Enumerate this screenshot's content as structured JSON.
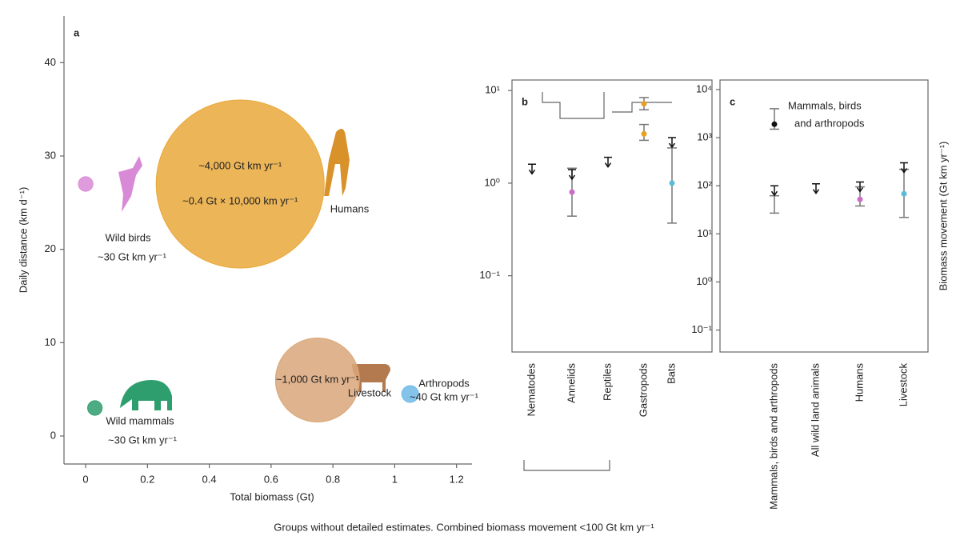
{
  "chart_data": [
    {
      "type": "bubble",
      "label": "a",
      "xlabel": "Total biomass (Gt)",
      "ylabel": "Daily distance (km d⁻¹)",
      "xlim": [
        -0.07,
        1.25
      ],
      "ylim": [
        -3,
        45
      ],
      "xticks": [
        0,
        0.2,
        0.4,
        0.6,
        0.8,
        1.0,
        1.2
      ],
      "yticks": [
        0,
        10,
        20,
        30,
        40
      ],
      "series": [
        {
          "name": "Wild birds",
          "color": "#d98ad6",
          "x": [
            0.0
          ],
          "values": [
            27
          ],
          "sizes": [
            30
          ],
          "size_labels": [
            "~30 Gt km yr⁻¹"
          ]
        },
        {
          "name": "Wild mammals",
          "color": "#2f9e6e",
          "x": [
            0.03
          ],
          "values": [
            3
          ],
          "sizes": [
            30
          ],
          "size_labels": [
            "~30 Gt km yr⁻¹"
          ]
        },
        {
          "name": "Humans",
          "color": "#e9a83a",
          "x": [
            0.5
          ],
          "values": [
            27
          ],
          "sizes": [
            4000
          ],
          "size_labels": [
            "~4,000 Gt km yr⁻¹"
          ],
          "annotation": "~0.4 Gt × 10,000 km yr⁻¹"
        },
        {
          "name": "Livestock",
          "color": "#d9a679",
          "x": [
            0.75
          ],
          "values": [
            6
          ],
          "sizes": [
            1000
          ],
          "size_labels": [
            "~1,000 Gt km yr⁻¹"
          ]
        },
        {
          "name": "Arthropods",
          "color": "#6fb9e6",
          "x": [
            1.05
          ],
          "values": [
            4.5
          ],
          "sizes": [
            40
          ],
          "size_labels": [
            "~40 Gt km yr⁻¹"
          ]
        }
      ]
    },
    {
      "type": "errorbar",
      "label": "b",
      "log_y": true,
      "ylim": [
        0.015,
        13
      ],
      "yticks": [
        {
          "value": 10,
          "label": "10¹"
        },
        {
          "value": 1,
          "label": "10⁰"
        },
        {
          "value": 0.1,
          "label": "10⁻¹"
        }
      ],
      "categories": [
        "Nematodes",
        "Annelids",
        "Reptiles",
        "Gastropods",
        "Bats"
      ],
      "colors": [
        "#222222",
        "#c86fc8",
        "#222222",
        "#e8a020",
        "#5bbcd6"
      ],
      "values": [
        null,
        0.8,
        null,
        3.4,
        1.0
      ],
      "error_low": [
        null,
        0.44,
        null,
        2.9,
        0.37
      ],
      "error_high": [
        null,
        1.45,
        null,
        4.3,
        2.4
      ],
      "upper_limits": [
        1.6,
        1.4,
        1.9,
        null,
        3.1
      ],
      "extra_values": [
        null,
        null,
        null,
        7.2,
        null
      ],
      "extra_error_low": [
        null,
        null,
        null,
        6.2,
        null
      ],
      "extra_error_high": [
        null,
        null,
        null,
        8.4,
        null
      ]
    },
    {
      "type": "errorbar",
      "label": "c",
      "log_y": true,
      "ylabel": "Biomass movement (Gt km yr⁻¹)",
      "ylim": [
        0.035,
        15800
      ],
      "yticks": [
        {
          "value": 10000,
          "label": "10⁴"
        },
        {
          "value": 1000,
          "label": "10³"
        },
        {
          "value": 100,
          "label": "10²"
        },
        {
          "value": 10,
          "label": "10¹"
        },
        {
          "value": 1,
          "label": "10⁰"
        },
        {
          "value": 0.1,
          "label": "10⁻¹"
        }
      ],
      "categories": [
        "Mammals, birds and arthropods",
        "All wild land animals",
        "Humans",
        "Livestock"
      ],
      "colors": [
        "#888888",
        "#222222",
        "#c86fc8",
        "#5bbcd6"
      ],
      "values": [
        null,
        null,
        52,
        68
      ],
      "error_low": [
        27,
        null,
        38,
        22
      ],
      "error_high": [
        62,
        null,
        95,
        220
      ],
      "upper_limits": [
        100,
        110,
        120,
        300
      ],
      "extra_values": [
        1900,
        null,
        null,
        null
      ],
      "extra_error_low": [
        1500,
        null,
        null,
        null
      ],
      "extra_error_high": [
        4000,
        null,
        null,
        null
      ],
      "annotation_lines": [
        "Mammals, birds",
        "and arthropods"
      ]
    },
    {
      "type": "caption",
      "text": "Groups without detailed estimates. Combined biomass movement <100 Gt km yr⁻¹"
    }
  ]
}
